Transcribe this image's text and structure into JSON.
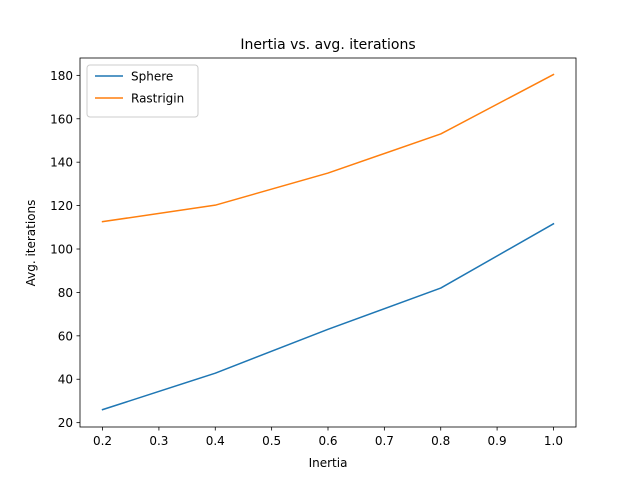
{
  "chart_data": {
    "type": "line",
    "title": "Inertia vs. avg. iterations",
    "xlabel": "Inertia",
    "ylabel": "Avg. iterations",
    "x": [
      0.2,
      0.4,
      0.6,
      0.8,
      1.0
    ],
    "xlim": [
      0.16,
      1.04
    ],
    "ylim": [
      18,
      188
    ],
    "xticks": [
      0.2,
      0.3,
      0.4,
      0.5,
      0.6,
      0.7,
      0.8,
      0.9,
      1.0
    ],
    "xtick_labels": [
      "0.2",
      "0.3",
      "0.4",
      "0.5",
      "0.6",
      "0.7",
      "0.8",
      "0.9",
      "1.0"
    ],
    "yticks": [
      20,
      40,
      60,
      80,
      100,
      120,
      140,
      160,
      180
    ],
    "ytick_labels": [
      "20",
      "40",
      "60",
      "80",
      "100",
      "120",
      "140",
      "160",
      "180"
    ],
    "grid": false,
    "legend_position": "top-left",
    "series": [
      {
        "name": "Sphere",
        "color": "#1f77b4",
        "values": [
          26,
          42.8,
          63,
          82,
          111.6
        ]
      },
      {
        "name": "Rastrigin",
        "color": "#ff7f0e",
        "values": [
          112.6,
          120.2,
          135,
          153,
          180.4
        ]
      }
    ]
  }
}
